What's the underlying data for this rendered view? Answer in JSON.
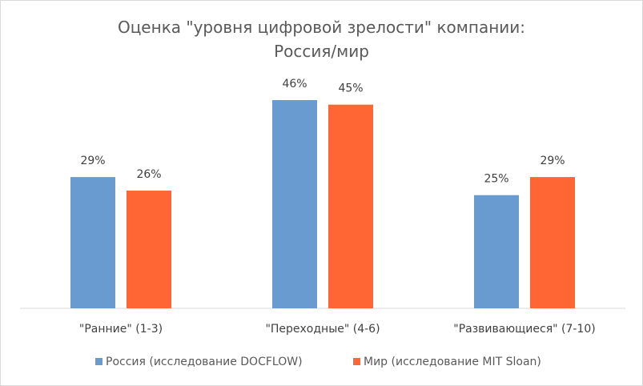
{
  "chart_data": {
    "type": "bar",
    "title": "Оценка \"уровня цифровой зрелости\" компании: Россия/мир",
    "categories": [
      "\"Ранние\" (1-3)",
      "\"Переходные\" (4-6)",
      "\"Развивающиеся\" (7-10)"
    ],
    "series": [
      {
        "name": "Россия (исследование DOCFLOW)",
        "color": "#6a9bd0",
        "values": [
          29,
          46,
          25
        ],
        "value_labels": [
          "29%",
          "46%",
          "25%"
        ]
      },
      {
        "name": "Мир (исследование MIT Sloan)",
        "color": "#ff6633",
        "values": [
          26,
          45,
          29
        ],
        "value_labels": [
          "26%",
          "45%",
          "29%"
        ]
      }
    ],
    "legend": "bottom"
  }
}
